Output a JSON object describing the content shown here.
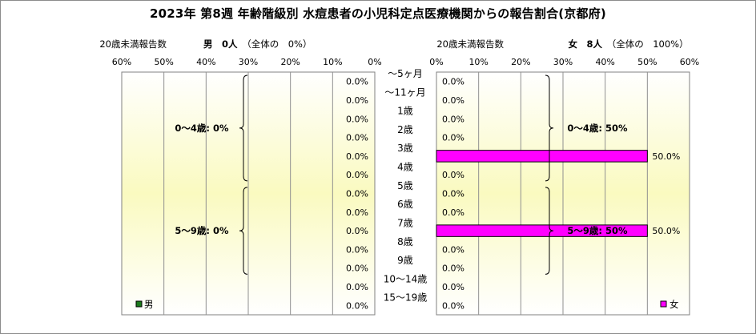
{
  "title": "2023年 第8週 年齢階級別 水痘患者の小児科定点医療機関からの報告割合(京都府)",
  "male_header": {
    "under20": "20歳未満報告数",
    "sex": "男",
    "count": "0人",
    "share": "（全体の　0%）"
  },
  "female_header": {
    "under20": "20歳未満報告数",
    "sex": "女",
    "count": "8人",
    "share": "（全体の　100%）"
  },
  "chart_data": {
    "type": "bar",
    "layout": "population-pyramid",
    "axis_ticks": [
      "60%",
      "50%",
      "40%",
      "30%",
      "20%",
      "10%",
      "0%"
    ],
    "axis_ticks_right": [
      "0%",
      "10%",
      "20%",
      "30%",
      "40%",
      "50%",
      "60%"
    ],
    "xlim": [
      0,
      60
    ],
    "categories": [
      "～5ヶ月",
      "～11ヶ月",
      "1歳",
      "2歳",
      "3歳",
      "4歳",
      "5歳",
      "6歳",
      "7歳",
      "8歳",
      "9歳",
      "10～14歳",
      "15～19歳"
    ],
    "series": [
      {
        "name": "男",
        "color": "#1a7a1a",
        "values": [
          0,
          0,
          0,
          0,
          0,
          0,
          0,
          0,
          0,
          0,
          0,
          0,
          0
        ],
        "labels": [
          "0.0%",
          "0.0%",
          "0.0%",
          "0.0%",
          "0.0%",
          "0.0%",
          "0.0%",
          "0.0%",
          "0.0%",
          "0.0%",
          "0.0%",
          "0.0%",
          "0.0%"
        ]
      },
      {
        "name": "女",
        "color": "#ff00ff",
        "values": [
          0,
          0,
          0,
          0,
          50,
          0,
          0,
          0,
          50,
          0,
          0,
          0,
          0
        ],
        "labels": [
          "0.0%",
          "0.0%",
          "0.0%",
          "0.0%",
          "50.0%",
          "0.0%",
          "0.0%",
          "0.0%",
          "50.0%",
          "0.0%",
          "0.0%",
          "0.0%",
          "0.0%"
        ]
      }
    ],
    "group_annotations": {
      "male": [
        "0～4歳: 0%",
        "5～9歳: 0%"
      ],
      "female": [
        "0～4歳: 50%",
        "5～9歳: 50%"
      ]
    },
    "legend": {
      "male": "男",
      "female": "女"
    }
  }
}
